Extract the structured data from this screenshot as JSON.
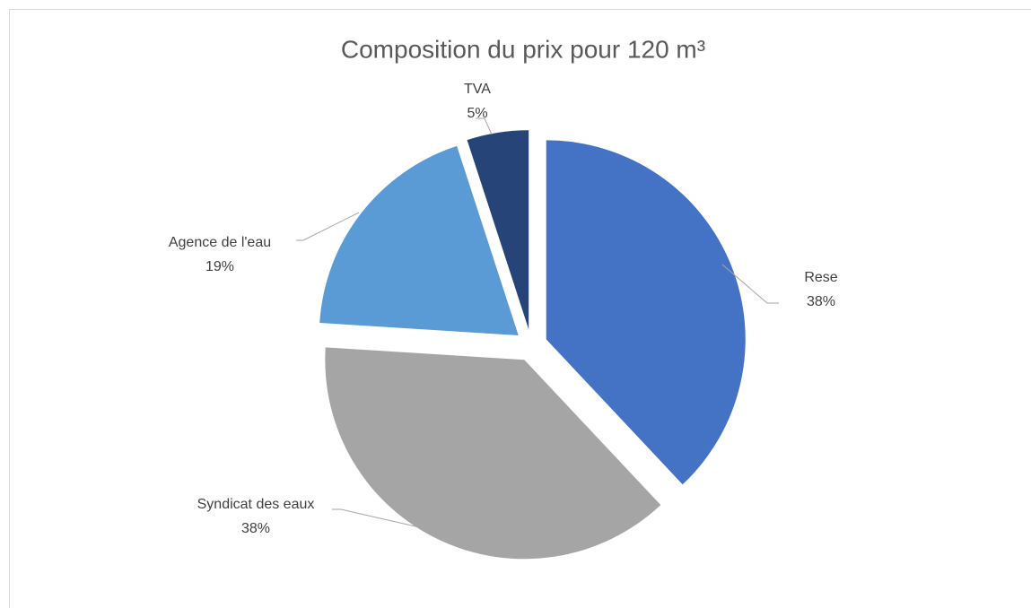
{
  "chart_data": {
    "type": "pie",
    "title": "Composition du prix pour 120 m³",
    "categories": [
      "Rese",
      "Syndicat des eaux",
      "Agence de l'eau",
      "TVA"
    ],
    "values": [
      38,
      38,
      19,
      5
    ],
    "value_labels": [
      "38%",
      "38%",
      "19%",
      "5%"
    ],
    "colors": [
      "#4472c4",
      "#a5a5a5",
      "#5b9bd5",
      "#264478"
    ]
  }
}
